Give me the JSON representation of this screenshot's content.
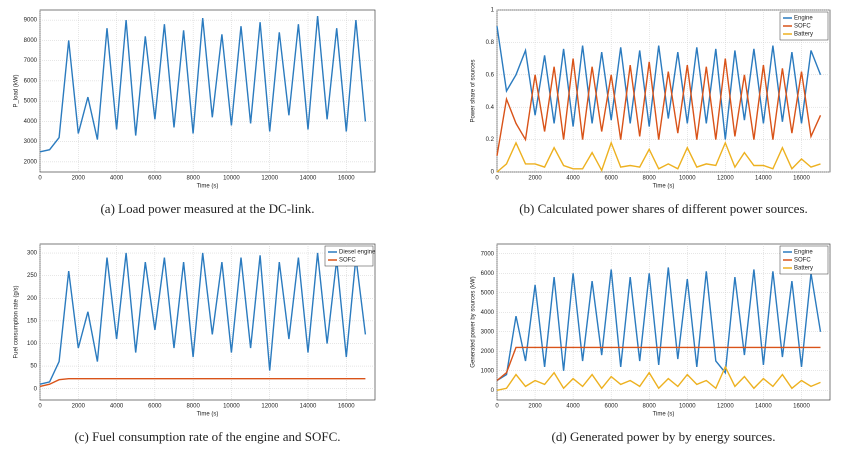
{
  "chart_data": [
    {
      "type": "line",
      "caption": "(a) Load power measured at the DC-link.",
      "xlabel": "Time (s)",
      "ylabel": "P_load (kW)",
      "x": [
        0,
        500,
        1000,
        1500,
        2000,
        2500,
        3000,
        3500,
        4000,
        4500,
        5000,
        5500,
        6000,
        6500,
        7000,
        7500,
        8000,
        8500,
        9000,
        9500,
        10000,
        10500,
        11000,
        11500,
        12000,
        12500,
        13000,
        13500,
        14000,
        14500,
        15000,
        15500,
        16000,
        16500,
        17000
      ],
      "xlim": [
        0,
        17500
      ],
      "xticks": [
        0,
        2000,
        4000,
        6000,
        8000,
        10000,
        12000,
        14000,
        16000
      ],
      "ylim": [
        1500,
        9500
      ],
      "yticks": [
        2000,
        3000,
        4000,
        5000,
        6000,
        7000,
        8000,
        9000
      ],
      "grid": true,
      "series": [
        {
          "name": "Load",
          "color": "#2b7bbf",
          "values": [
            2500,
            2600,
            3200,
            8000,
            3400,
            5200,
            3100,
            8600,
            3600,
            9000,
            3300,
            8200,
            4100,
            8800,
            3700,
            8500,
            3400,
            9100,
            4200,
            8300,
            3800,
            8700,
            3900,
            8900,
            3500,
            8400,
            4300,
            8800,
            3600,
            9200,
            4100,
            8600,
            3500,
            9000,
            4000
          ]
        }
      ]
    },
    {
      "type": "line",
      "caption": "(b) Calculated power shares of different power sources.",
      "xlabel": "Time (s)",
      "ylabel": "Power share of sources",
      "x": [
        0,
        500,
        1000,
        1500,
        2000,
        2500,
        3000,
        3500,
        4000,
        4500,
        5000,
        5500,
        6000,
        6500,
        7000,
        7500,
        8000,
        8500,
        9000,
        9500,
        10000,
        10500,
        11000,
        11500,
        12000,
        12500,
        13000,
        13500,
        14000,
        14500,
        15000,
        15500,
        16000,
        16500,
        17000
      ],
      "xlim": [
        0,
        17500
      ],
      "xticks": [
        0,
        2000,
        4000,
        6000,
        8000,
        10000,
        12000,
        14000,
        16000
      ],
      "ylim": [
        0,
        1
      ],
      "yticks": [
        0,
        0.2,
        0.4,
        0.6,
        0.8,
        1
      ],
      "grid": true,
      "legend": "upper right",
      "series": [
        {
          "name": "Engine",
          "color": "#2b7bbf",
          "values": [
            0.9,
            0.5,
            0.6,
            0.75,
            0.35,
            0.72,
            0.3,
            0.76,
            0.28,
            0.78,
            0.3,
            0.74,
            0.32,
            0.77,
            0.3,
            0.75,
            0.28,
            0.78,
            0.33,
            0.74,
            0.3,
            0.77,
            0.3,
            0.76,
            0.2,
            0.75,
            0.32,
            0.76,
            0.3,
            0.78,
            0.31,
            0.74,
            0.3,
            0.75,
            0.6
          ]
        },
        {
          "name": "SOFC",
          "color": "#d95319",
          "values": [
            0.1,
            0.45,
            0.3,
            0.2,
            0.6,
            0.25,
            0.65,
            0.2,
            0.7,
            0.2,
            0.65,
            0.25,
            0.6,
            0.2,
            0.66,
            0.22,
            0.68,
            0.2,
            0.62,
            0.24,
            0.66,
            0.2,
            0.65,
            0.2,
            0.7,
            0.22,
            0.6,
            0.2,
            0.66,
            0.2,
            0.64,
            0.24,
            0.62,
            0.22,
            0.35
          ]
        },
        {
          "name": "Battery",
          "color": "#edb120",
          "values": [
            0,
            0.05,
            0.18,
            0.05,
            0.05,
            0.03,
            0.15,
            0.04,
            0.02,
            0.02,
            0.12,
            0.01,
            0.18,
            0.03,
            0.04,
            0.03,
            0.14,
            0.02,
            0.05,
            0.02,
            0.15,
            0.03,
            0.05,
            0.04,
            0.18,
            0.03,
            0.12,
            0.04,
            0.04,
            0.02,
            0.15,
            0.02,
            0.08,
            0.03,
            0.05
          ]
        }
      ]
    },
    {
      "type": "line",
      "caption": "(c) Fuel consumption rate of the engine and SOFC.",
      "xlabel": "Time (s)",
      "ylabel": "Fuel consumption rate (g/s)",
      "x": [
        0,
        500,
        1000,
        1500,
        2000,
        2500,
        3000,
        3500,
        4000,
        4500,
        5000,
        5500,
        6000,
        6500,
        7000,
        7500,
        8000,
        8500,
        9000,
        9500,
        10000,
        10500,
        11000,
        11500,
        12000,
        12500,
        13000,
        13500,
        14000,
        14500,
        15000,
        15500,
        16000,
        16500,
        17000
      ],
      "xlim": [
        0,
        17500
      ],
      "xticks": [
        0,
        2000,
        4000,
        6000,
        8000,
        10000,
        12000,
        14000,
        16000
      ],
      "ylim": [
        -25,
        320
      ],
      "yticks": [
        0,
        50,
        100,
        150,
        200,
        250,
        300
      ],
      "grid": true,
      "legend": "upper right",
      "series": [
        {
          "name": "Diesel engine",
          "color": "#2b7bbf",
          "values": [
            10,
            15,
            60,
            260,
            90,
            170,
            60,
            290,
            110,
            300,
            80,
            280,
            130,
            290,
            90,
            280,
            70,
            300,
            120,
            280,
            80,
            290,
            90,
            295,
            40,
            280,
            110,
            290,
            80,
            300,
            100,
            285,
            70,
            290,
            120
          ]
        },
        {
          "name": "SOFC",
          "color": "#d95319",
          "values": [
            5,
            10,
            20,
            22,
            22,
            22,
            22,
            22,
            22,
            22,
            22,
            22,
            22,
            22,
            22,
            22,
            22,
            22,
            22,
            22,
            22,
            22,
            22,
            22,
            22,
            22,
            22,
            22,
            22,
            22,
            22,
            22,
            22,
            22,
            22
          ]
        }
      ]
    },
    {
      "type": "line",
      "caption": "(d) Generated power by by energy sources.",
      "xlabel": "Time (s)",
      "ylabel": "Generated power by sources (kW)",
      "x": [
        0,
        500,
        1000,
        1500,
        2000,
        2500,
        3000,
        3500,
        4000,
        4500,
        5000,
        5500,
        6000,
        6500,
        7000,
        7500,
        8000,
        8500,
        9000,
        9500,
        10000,
        10500,
        11000,
        11500,
        12000,
        12500,
        13000,
        13500,
        14000,
        14500,
        15000,
        15500,
        16000,
        16500,
        17000
      ],
      "xlim": [
        0,
        17500
      ],
      "xticks": [
        0,
        2000,
        4000,
        6000,
        8000,
        10000,
        12000,
        14000,
        16000
      ],
      "ylim": [
        -500,
        7500
      ],
      "yticks": [
        0,
        1000,
        2000,
        3000,
        4000,
        5000,
        6000,
        7000
      ],
      "grid": true,
      "legend": "upper right",
      "series": [
        {
          "name": "Engine",
          "color": "#2b7bbf",
          "values": [
            500,
            800,
            3800,
            1500,
            5400,
            1200,
            5800,
            1000,
            6000,
            1500,
            5600,
            1800,
            6200,
            1200,
            5800,
            1500,
            6000,
            1300,
            6300,
            1600,
            5700,
            1200,
            6100,
            1500,
            900,
            5800,
            1800,
            6200,
            1300,
            6100,
            1700,
            5600,
            1200,
            6000,
            3000
          ]
        },
        {
          "name": "SOFC",
          "color": "#d95319",
          "values": [
            500,
            900,
            2200,
            2200,
            2200,
            2200,
            2200,
            2200,
            2200,
            2200,
            2200,
            2200,
            2200,
            2200,
            2200,
            2200,
            2200,
            2200,
            2200,
            2200,
            2200,
            2200,
            2200,
            2200,
            2200,
            2200,
            2200,
            2200,
            2200,
            2200,
            2200,
            2200,
            2200,
            2200,
            2200
          ]
        },
        {
          "name": "Battery",
          "color": "#edb120",
          "values": [
            0,
            100,
            800,
            200,
            500,
            300,
            900,
            100,
            600,
            200,
            800,
            100,
            700,
            300,
            500,
            200,
            900,
            100,
            600,
            200,
            800,
            300,
            500,
            100,
            1200,
            200,
            700,
            100,
            600,
            200,
            800,
            100,
            500,
            200,
            400
          ]
        }
      ]
    }
  ]
}
